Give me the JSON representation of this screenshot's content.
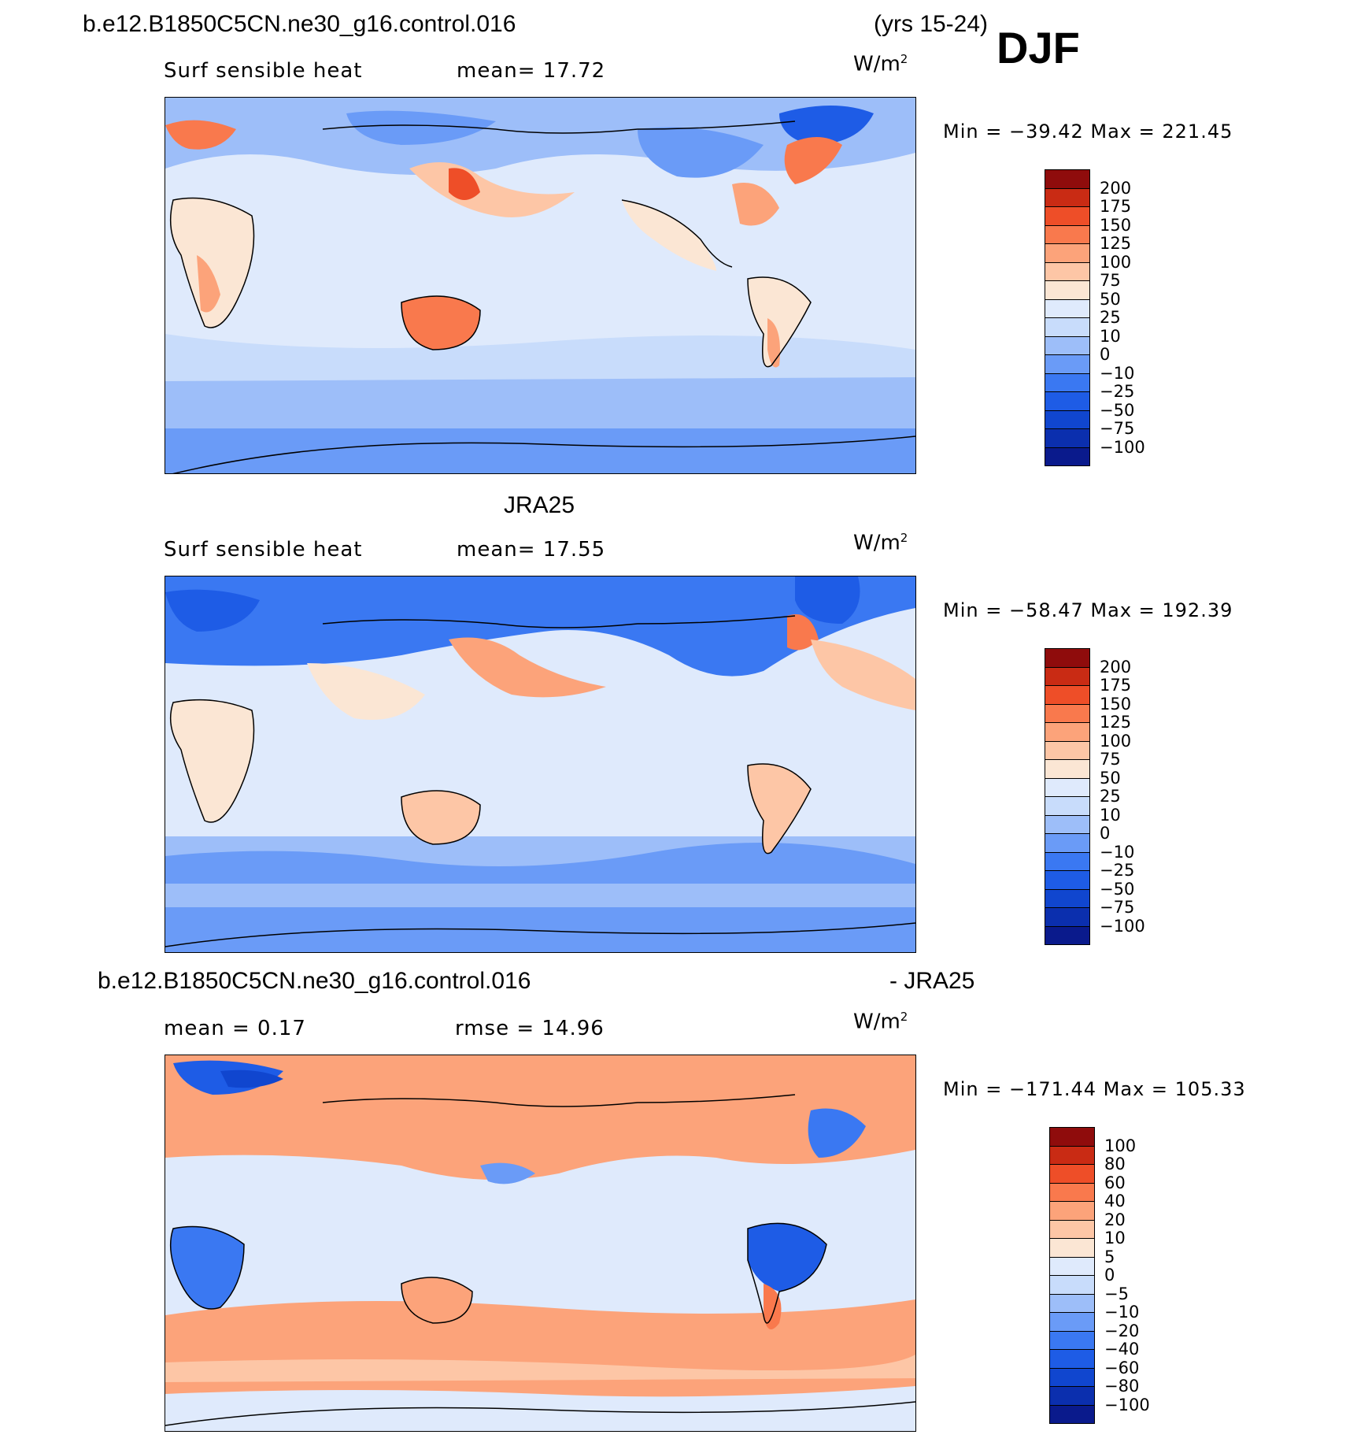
{
  "header": {
    "case_name": "b.e12.B1850C5CN.ne30_g16.control.016",
    "years": "(yrs 15-24)",
    "season": "DJF"
  },
  "panels": [
    {
      "id": "model",
      "title": "",
      "variable": "Surf  sensible  heat",
      "stat": "mean=   17.72",
      "units": "W/m",
      "units_sup": "2",
      "minmax": "Min  =  −39.42  Max  =  221.45",
      "colorbar": {
        "colors": [
          "#0a1a8c",
          "#0b2fae",
          "#1046cf",
          "#1e5ce6",
          "#3a78f2",
          "#6a9bf7",
          "#9dbef9",
          "#c8dcfb",
          "#dfeafc",
          "#fbe6d4",
          "#fdc6a6",
          "#fca37a",
          "#f9794d",
          "#ee4e28",
          "#c92b14",
          "#8f0c0c"
        ],
        "labels": [
          "200",
          "175",
          "150",
          "125",
          "100",
          "75",
          "50",
          "25",
          "10",
          "0",
          "−10",
          "−25",
          "−50",
          "−75",
          "−100"
        ]
      }
    },
    {
      "id": "obs",
      "title": "JRA25",
      "variable": "Surf  sensible  heat",
      "stat": "mean=   17.55",
      "units": "W/m",
      "units_sup": "2",
      "minmax": "Min  =  −58.47  Max  =  192.39",
      "colorbar": {
        "colors": [
          "#0a1a8c",
          "#0b2fae",
          "#1046cf",
          "#1e5ce6",
          "#3a78f2",
          "#6a9bf7",
          "#9dbef9",
          "#c8dcfb",
          "#dfeafc",
          "#fbe6d4",
          "#fdc6a6",
          "#fca37a",
          "#f9794d",
          "#ee4e28",
          "#c92b14",
          "#8f0c0c"
        ],
        "labels": [
          "200",
          "175",
          "150",
          "125",
          "100",
          "75",
          "50",
          "25",
          "10",
          "0",
          "−10",
          "−25",
          "−50",
          "−75",
          "−100"
        ]
      }
    },
    {
      "id": "diff",
      "title_left": "b.e12.B1850C5CN.ne30_g16.control.016",
      "title_right": "- JRA25",
      "stat_mean": "mean  =     0.17",
      "stat_rmse": "rmse  =    14.96",
      "units": "W/m",
      "units_sup": "2",
      "minmax": "Min  =  −171.44  Max  =  105.33",
      "colorbar": {
        "colors": [
          "#0a1a8c",
          "#0b2fae",
          "#1046cf",
          "#1e5ce6",
          "#3a78f2",
          "#6a9bf7",
          "#9dbef9",
          "#c8dcfb",
          "#dfeafc",
          "#fbe6d4",
          "#fdc6a6",
          "#fca37a",
          "#f9794d",
          "#ee4e28",
          "#c92b14",
          "#8f0c0c"
        ],
        "labels": [
          "100",
          "80",
          "60",
          "40",
          "20",
          "10",
          "5",
          "0",
          "−5",
          "−10",
          "−20",
          "−40",
          "−60",
          "−80",
          "−100"
        ]
      }
    }
  ]
}
